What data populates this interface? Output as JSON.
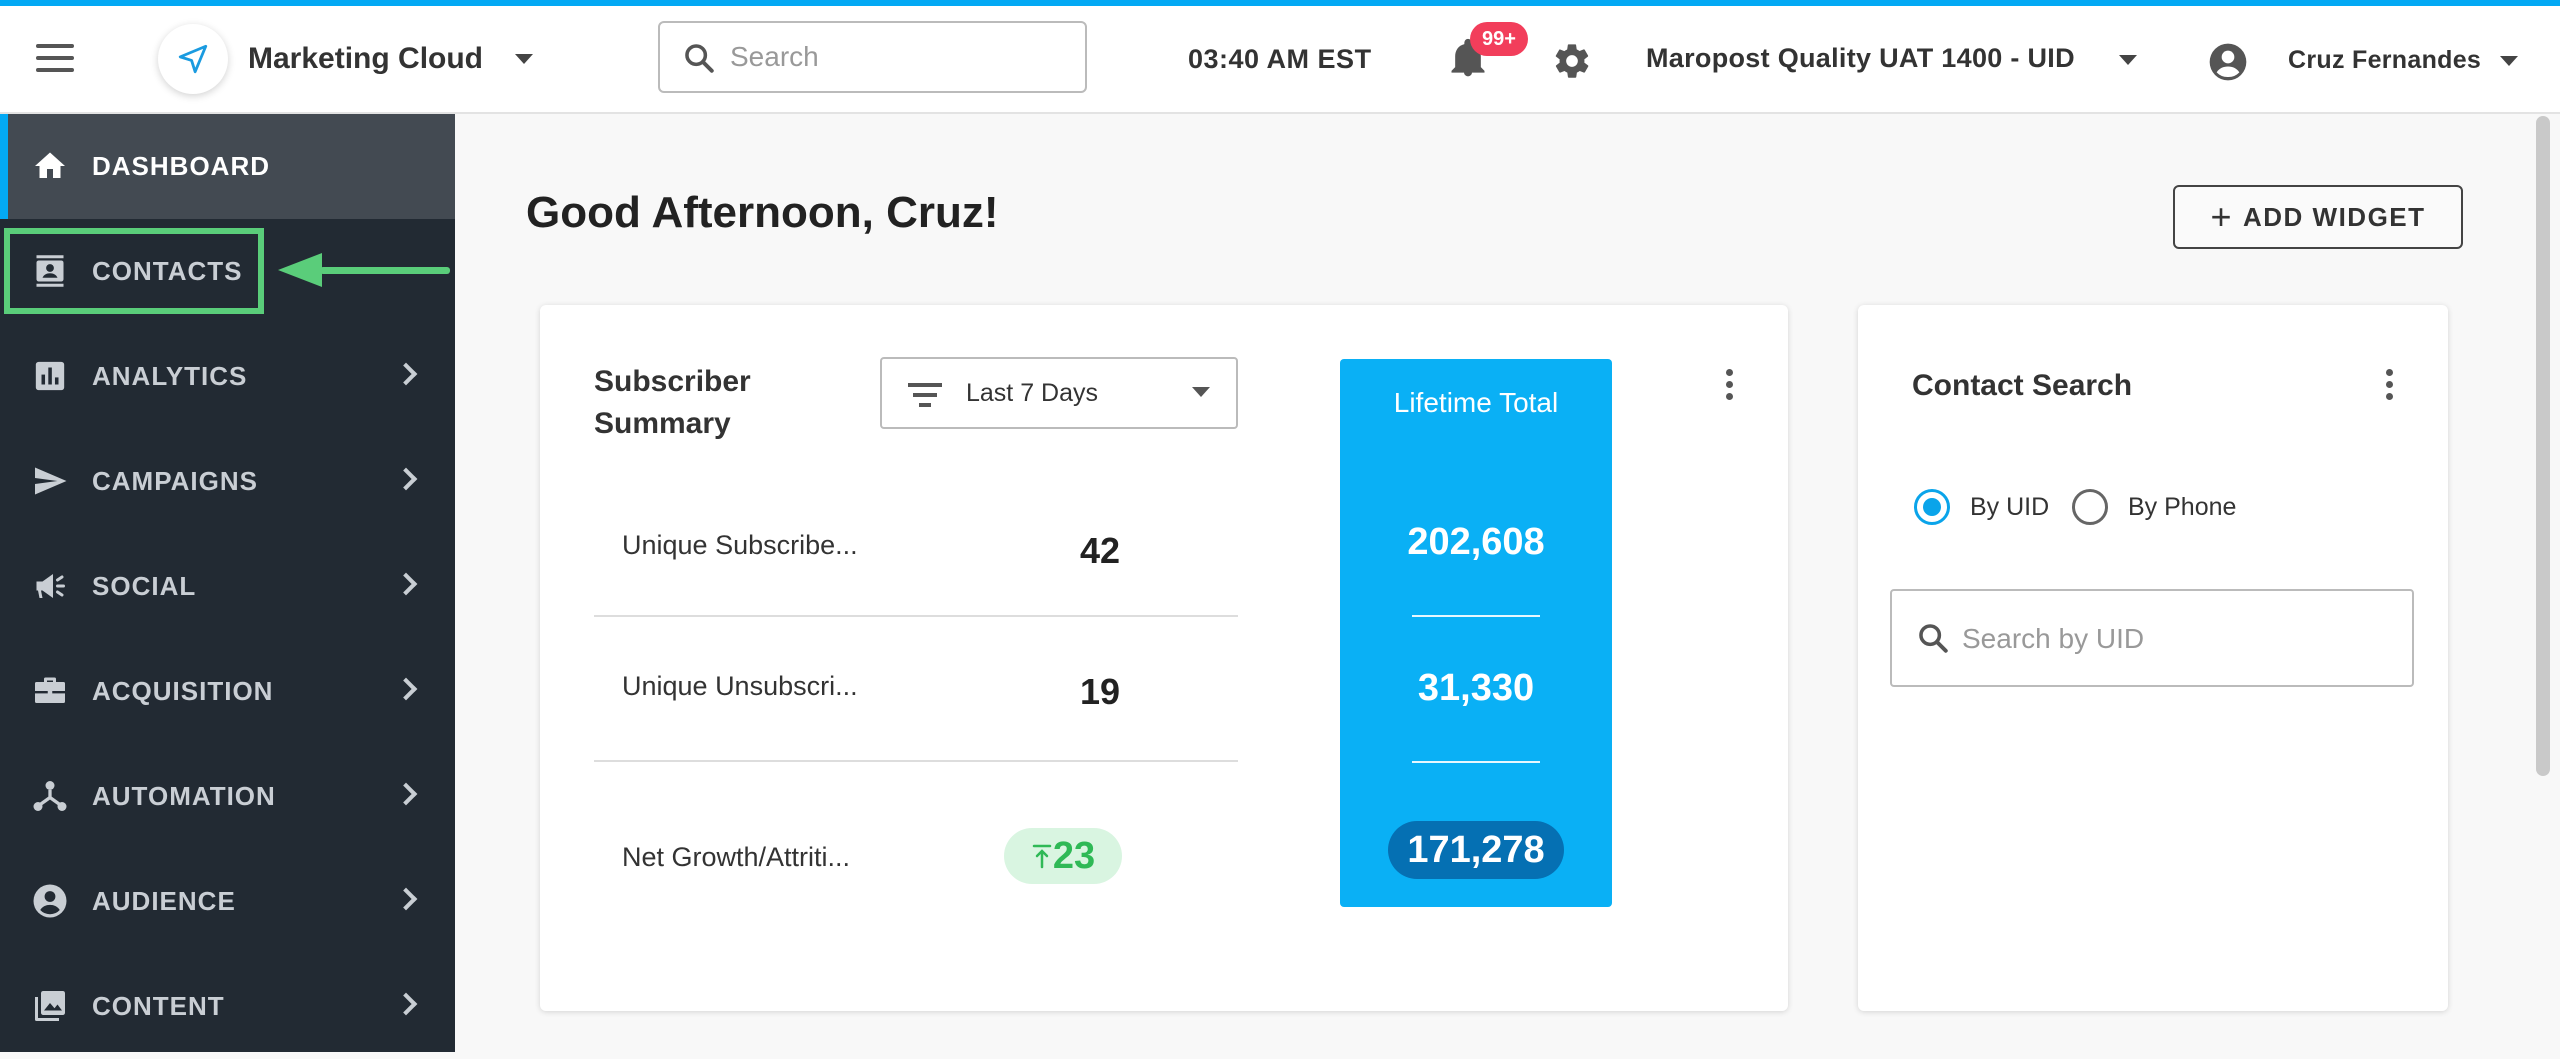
{
  "header": {
    "brand_name": "Marketing Cloud",
    "search_placeholder": "Search",
    "clock": "03:40 AM EST",
    "notification_count": "99+",
    "account_name": "Maropost Quality UAT 1400 - UID",
    "user_name": "Cruz Fernandes"
  },
  "sidebar": {
    "items": [
      {
        "label": "DASHBOARD",
        "icon": "home-icon",
        "active": true
      },
      {
        "label": "CONTACTS",
        "icon": "contacts-icon"
      },
      {
        "label": "ANALYTICS",
        "icon": "analytics-icon"
      },
      {
        "label": "CAMPAIGNS",
        "icon": "send-icon"
      },
      {
        "label": "SOCIAL",
        "icon": "megaphone-icon"
      },
      {
        "label": "ACQUISITION",
        "icon": "briefcase-icon"
      },
      {
        "label": "AUTOMATION",
        "icon": "workflow-icon"
      },
      {
        "label": "AUDIENCE",
        "icon": "person-circle-icon"
      },
      {
        "label": "CONTENT",
        "icon": "image-gallery-icon"
      }
    ]
  },
  "main": {
    "greeting": "Good Afternoon, Cruz!",
    "add_widget_label": "ADD WIDGET",
    "subscriber_summary": {
      "title": "Subscriber Summary",
      "filter_label": "Last 7 Days",
      "rows": [
        {
          "label": "Unique Subscribe...",
          "value": "42"
        },
        {
          "label": "Unique Unsubscri...",
          "value": "19"
        },
        {
          "label": "Net Growth/Attriti...",
          "value": "23"
        }
      ],
      "lifetime": {
        "title": "Lifetime Total",
        "values": [
          "202,608",
          "31,330",
          "171,278"
        ]
      }
    },
    "contact_search": {
      "title": "Contact Search",
      "option_uid": "By UID",
      "option_phone": "By Phone",
      "selected": "By UID",
      "search_placeholder": "Search by UID"
    }
  },
  "colors": {
    "accent": "#03a9f4",
    "sidebar_bg": "#222a33",
    "highlight": "#5acd7a",
    "lifetime_bg": "#0ab0f5",
    "badge": "#f23e5b"
  }
}
